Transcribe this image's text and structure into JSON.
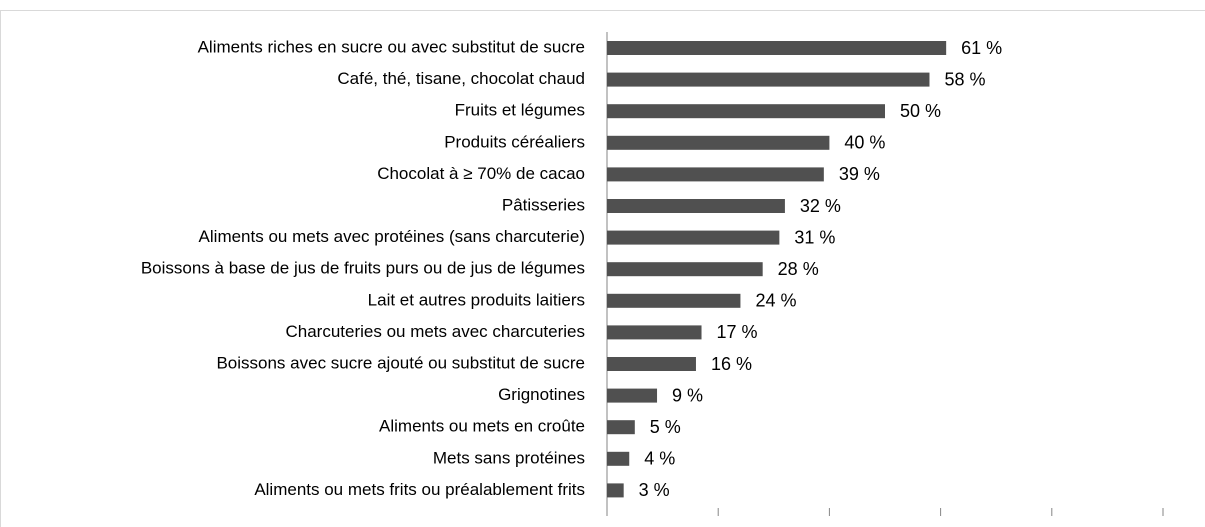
{
  "chart_data": {
    "type": "hbar",
    "categories": [
      "Aliments riches en sucre ou avec substitut de sucre",
      "Café, thé, tisane, chocolat chaud",
      "Fruits et légumes",
      "Produits céréaliers",
      "Chocolat à ≥ 70% de cacao",
      "Pâtisseries",
      "Aliments ou mets avec protéines (sans charcuterie)",
      "Boissons à base de jus de fruits purs ou de jus de légumes",
      "Lait et autres produits laitiers",
      "Charcuteries ou mets avec charcuteries",
      "Boissons avec sucre ajouté ou substitut de sucre",
      "Grignotines",
      "Aliments ou mets en croûte",
      "Mets sans protéines",
      "Aliments ou mets frits ou préalablement frits"
    ],
    "values": [
      61,
      58,
      50,
      40,
      39,
      32,
      31,
      28,
      24,
      17,
      16,
      9,
      5,
      4,
      3
    ],
    "value_labels": [
      "61 %",
      "58 %",
      "50 %",
      "40 %",
      "39 %",
      "32 %",
      "31 %",
      "28 %",
      "24 %",
      "17 %",
      "16 %",
      "9 %",
      "5 %",
      "4 %",
      "3 %"
    ],
    "color": "#505050",
    "xlim": [
      0,
      100
    ],
    "xticks": [
      0,
      20,
      40,
      60,
      80,
      100
    ]
  }
}
